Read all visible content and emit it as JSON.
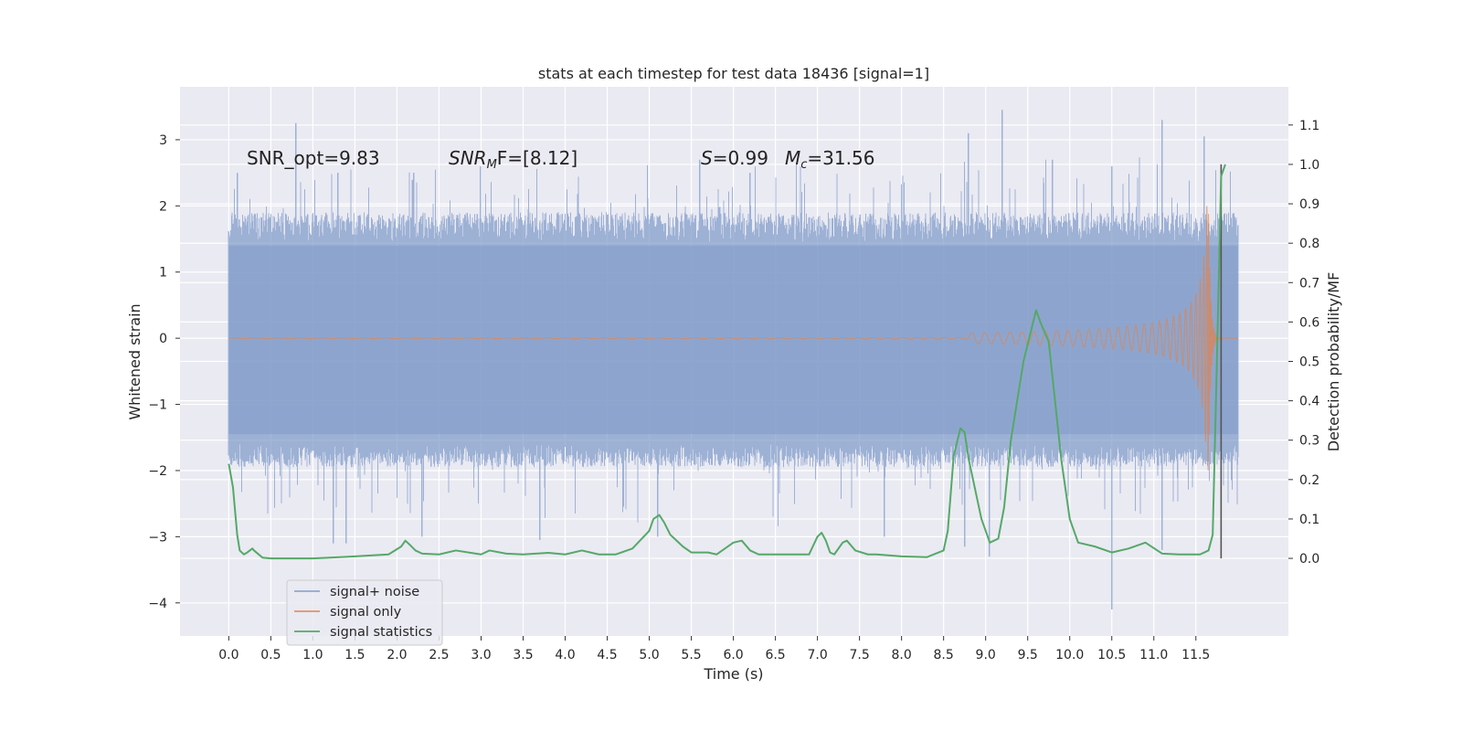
{
  "chart_data": {
    "type": "line",
    "title": "stats at each timestep for test data 18436 [signal=1]",
    "xlabel": "Time (s)",
    "ylabel": "Whitened strain",
    "ylabel_right": "Detection probability/MF",
    "xlim": [
      -0.58,
      12.6
    ],
    "ylim": [
      -4.5,
      3.8
    ],
    "ylim_right": [
      -0.197,
      1.197
    ],
    "xticks": [
      "0.0",
      "0.5",
      "1.0",
      "1.5",
      "2.0",
      "2.5",
      "3.0",
      "3.5",
      "4.0",
      "4.5",
      "5.0",
      "5.5",
      "6.0",
      "6.5",
      "7.0",
      "7.5",
      "8.0",
      "8.5",
      "9.0",
      "9.5",
      "10.0",
      "10.5",
      "11.0",
      "11.5"
    ],
    "yticks": [
      "3",
      "2",
      "1",
      "0",
      "−1",
      "−2",
      "−3",
      "−4"
    ],
    "yticks_right": [
      "1.1",
      "1.0",
      "0.9",
      "0.8",
      "0.7",
      "0.6",
      "0.5",
      "0.4",
      "0.3",
      "0.2",
      "0.1",
      "0.0"
    ],
    "grid": true,
    "legend_position": "bottom-left",
    "annotations": {
      "snr_opt": "SNR_opt=9.83",
      "snr_mf_base": "SNR",
      "snr_mf_sub": "M",
      "snr_mf_tail": "F=[8.12]",
      "s_sym": "S",
      "s_val": "=0.99",
      "mc_sym": "M",
      "mc_sub": "c",
      "mc_val": "=31.56"
    },
    "noise_series": {
      "name": "signal+ noise",
      "color": "#7f9bc9",
      "x_range": [
        0.0,
        12.0
      ],
      "typical_min": -1.6,
      "typical_max": 1.5,
      "peaks_high": [
        [
          0.1,
          2.5
        ],
        [
          0.8,
          3.25
        ],
        [
          1.3,
          2.5
        ],
        [
          2.2,
          2.5
        ],
        [
          3.0,
          2.6
        ],
        [
          5.6,
          2.7
        ],
        [
          6.2,
          2.5
        ],
        [
          8.8,
          3.1
        ],
        [
          9.2,
          3.45
        ],
        [
          9.8,
          2.7
        ],
        [
          10.5,
          2.6
        ],
        [
          11.1,
          3.3
        ],
        [
          11.6,
          3.05
        ]
      ],
      "peaks_low": [
        [
          1.25,
          -3.1
        ],
        [
          1.4,
          -3.1
        ],
        [
          2.3,
          -3.0
        ],
        [
          3.7,
          -3.05
        ],
        [
          5.1,
          -3.0
        ],
        [
          7.8,
          -3.0
        ],
        [
          8.75,
          -3.15
        ],
        [
          9.05,
          -3.3
        ],
        [
          10.5,
          -4.1
        ],
        [
          11.1,
          -3.2
        ]
      ]
    },
    "signal_series": {
      "name": "signal only",
      "color": "#dd8452",
      "x_range": [
        0.0,
        12.0
      ],
      "merger_time": 11.65,
      "peak_amplitude": 2.0,
      "amplitude_at_9s": 0.05
    },
    "statistic_series": {
      "name": "signal statistics",
      "color": "#55a868",
      "axis": "right",
      "x": [
        0.0,
        0.05,
        0.1,
        0.13,
        0.18,
        0.22,
        0.28,
        0.3,
        0.4,
        0.5,
        0.7,
        1.0,
        1.5,
        1.9,
        2.05,
        2.1,
        2.15,
        2.22,
        2.3,
        2.5,
        2.7,
        3.0,
        3.1,
        3.3,
        3.5,
        3.8,
        4.0,
        4.2,
        4.4,
        4.6,
        4.8,
        5.0,
        5.05,
        5.12,
        5.18,
        5.25,
        5.3,
        5.4,
        5.5,
        5.6,
        5.7,
        5.8,
        6.0,
        6.1,
        6.2,
        6.3,
        6.4,
        6.6,
        6.9,
        7.0,
        7.05,
        7.1,
        7.15,
        7.2,
        7.3,
        7.35,
        7.45,
        7.6,
        7.7,
        8.0,
        8.3,
        8.5,
        8.55,
        8.62,
        8.7,
        8.75,
        8.8,
        8.85,
        8.95,
        9.05,
        9.15,
        9.22,
        9.3,
        9.45,
        9.6,
        9.65,
        9.75,
        9.8,
        9.9,
        10.0,
        10.1,
        10.3,
        10.5,
        10.7,
        10.9,
        11.1,
        11.3,
        11.55,
        11.65,
        11.7,
        11.75,
        11.8,
        11.85
      ],
      "y": [
        0.24,
        0.18,
        0.06,
        0.02,
        0.01,
        0.015,
        0.025,
        0.02,
        0.002,
        0.0,
        0.0,
        0.0,
        0.005,
        0.01,
        0.03,
        0.045,
        0.035,
        0.02,
        0.012,
        0.01,
        0.02,
        0.01,
        0.02,
        0.012,
        0.01,
        0.014,
        0.01,
        0.02,
        0.01,
        0.01,
        0.025,
        0.07,
        0.1,
        0.11,
        0.09,
        0.06,
        0.05,
        0.03,
        0.015,
        0.015,
        0.015,
        0.01,
        0.04,
        0.045,
        0.02,
        0.01,
        0.01,
        0.01,
        0.01,
        0.055,
        0.065,
        0.045,
        0.015,
        0.01,
        0.04,
        0.045,
        0.02,
        0.01,
        0.01,
        0.005,
        0.003,
        0.02,
        0.07,
        0.26,
        0.33,
        0.32,
        0.25,
        0.2,
        0.1,
        0.04,
        0.05,
        0.13,
        0.3,
        0.5,
        0.63,
        0.6,
        0.55,
        0.45,
        0.25,
        0.1,
        0.04,
        0.03,
        0.015,
        0.025,
        0.04,
        0.012,
        0.01,
        0.01,
        0.02,
        0.06,
        0.5,
        0.97,
        1.0
      ]
    },
    "vertical_line": {
      "x": 11.8,
      "color": "#555555",
      "axis": "right",
      "y0": 0.0,
      "y1": 1.0
    }
  }
}
